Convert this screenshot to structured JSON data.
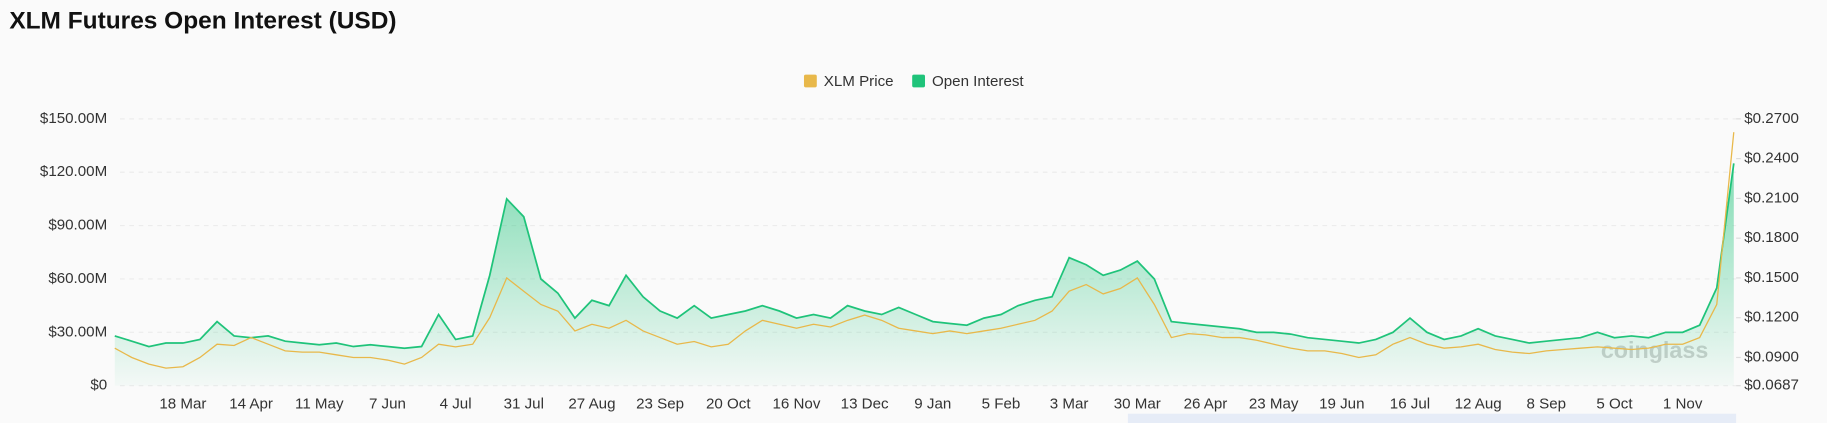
{
  "chart_data": {
    "type": "line",
    "title": "XLM Futures Open Interest (USD)",
    "watermark": "coinglass",
    "categories": [
      null,
      null,
      null,
      null,
      "18 Mar",
      null,
      null,
      null,
      "14 Apr",
      null,
      null,
      null,
      "11 May",
      null,
      null,
      null,
      "7 Jun",
      null,
      null,
      null,
      "4 Jul",
      null,
      null,
      null,
      "31 Jul",
      null,
      null,
      null,
      "27 Aug",
      null,
      null,
      null,
      "23 Sep",
      null,
      null,
      null,
      "20 Oct",
      null,
      null,
      null,
      "16 Nov",
      null,
      null,
      null,
      "13 Dec",
      null,
      null,
      null,
      "9 Jan",
      null,
      null,
      null,
      "5 Feb",
      null,
      null,
      null,
      "3 Mar",
      null,
      null,
      null,
      "30 Mar",
      null,
      null,
      null,
      "26 Apr",
      null,
      null,
      null,
      "23 May",
      null,
      null,
      null,
      "19 Jun",
      null,
      null,
      null,
      "16 Jul",
      null,
      null,
      null,
      "12 Aug",
      null,
      null,
      null,
      "8 Sep",
      null,
      null,
      null,
      "5 Oct",
      null,
      null,
      null,
      "1 Nov",
      null,
      null,
      null
    ],
    "series": [
      {
        "name": "XLM Price",
        "color": "#e8b84a",
        "axis": "y2",
        "values": [
          0.097,
          0.09,
          0.085,
          0.082,
          0.083,
          0.09,
          0.1,
          0.099,
          0.105,
          0.1,
          0.095,
          0.094,
          0.094,
          0.092,
          0.09,
          0.09,
          0.088,
          0.085,
          0.09,
          0.1,
          0.098,
          0.1,
          0.12,
          0.15,
          0.14,
          0.13,
          0.125,
          0.11,
          0.115,
          0.112,
          0.118,
          0.11,
          0.105,
          0.1,
          0.102,
          0.098,
          0.1,
          0.11,
          0.118,
          0.115,
          0.112,
          0.115,
          0.113,
          0.118,
          0.122,
          0.118,
          0.112,
          0.11,
          0.108,
          0.11,
          0.108,
          0.11,
          0.112,
          0.115,
          0.118,
          0.125,
          0.14,
          0.145,
          0.138,
          0.142,
          0.15,
          0.13,
          0.105,
          0.108,
          0.107,
          0.105,
          0.105,
          0.103,
          0.1,
          0.097,
          0.095,
          0.095,
          0.093,
          0.09,
          0.092,
          0.1,
          0.105,
          0.1,
          0.097,
          0.098,
          0.1,
          0.096,
          0.094,
          0.093,
          0.095,
          0.096,
          0.097,
          0.098,
          0.097,
          0.096,
          0.097,
          0.1,
          0.1,
          0.105,
          0.13,
          0.26
        ]
      },
      {
        "name": "Open Interest",
        "color": "#1fc37a",
        "values": [
          28000000,
          25000000,
          22000000,
          24000000,
          24000000,
          26000000,
          36000000,
          28000000,
          27000000,
          28000000,
          25000000,
          24000000,
          23000000,
          24000000,
          22000000,
          23000000,
          22000000,
          21000000,
          22000000,
          40000000,
          26000000,
          28000000,
          62000000,
          105000000,
          95000000,
          60000000,
          52000000,
          38000000,
          48000000,
          45000000,
          62000000,
          50000000,
          42000000,
          38000000,
          45000000,
          38000000,
          40000000,
          42000000,
          45000000,
          42000000,
          38000000,
          40000000,
          38000000,
          45000000,
          42000000,
          40000000,
          44000000,
          40000000,
          36000000,
          35000000,
          34000000,
          38000000,
          40000000,
          45000000,
          48000000,
          50000000,
          72000000,
          68000000,
          62000000,
          65000000,
          70000000,
          60000000,
          36000000,
          35000000,
          34000000,
          33000000,
          32000000,
          30000000,
          30000000,
          29000000,
          27000000,
          26000000,
          25000000,
          24000000,
          26000000,
          30000000,
          38000000,
          30000000,
          26000000,
          28000000,
          32000000,
          28000000,
          26000000,
          24000000,
          25000000,
          26000000,
          27000000,
          30000000,
          27000000,
          28000000,
          27000000,
          30000000,
          30000000,
          34000000,
          55000000,
          125000000
        ]
      }
    ],
    "ylim": [
      0,
      150000000
    ],
    "yticks": [
      {
        "value": 0,
        "label": "$0"
      },
      {
        "value": 30000000,
        "label": "$30.00M"
      },
      {
        "value": 60000000,
        "label": "$60.00M"
      },
      {
        "value": 90000000,
        "label": "$90.00M"
      },
      {
        "value": 120000000,
        "label": "$120.00M"
      },
      {
        "value": 150000000,
        "label": "$150.00M"
      }
    ],
    "y2lim": [
      0.0687,
      0.27
    ],
    "y2ticks": [
      {
        "value": 0.0687,
        "label": "$0.0687"
      },
      {
        "value": 0.09,
        "label": "$0.0900"
      },
      {
        "value": 0.12,
        "label": "$0.1200"
      },
      {
        "value": 0.15,
        "label": "$0.1500"
      },
      {
        "value": 0.18,
        "label": "$0.1800"
      },
      {
        "value": 0.21,
        "label": "$0.2100"
      },
      {
        "value": 0.24,
        "label": "$0.2400"
      },
      {
        "value": 0.27,
        "label": "$0.2700"
      }
    ],
    "grid": true,
    "legend": "top"
  }
}
